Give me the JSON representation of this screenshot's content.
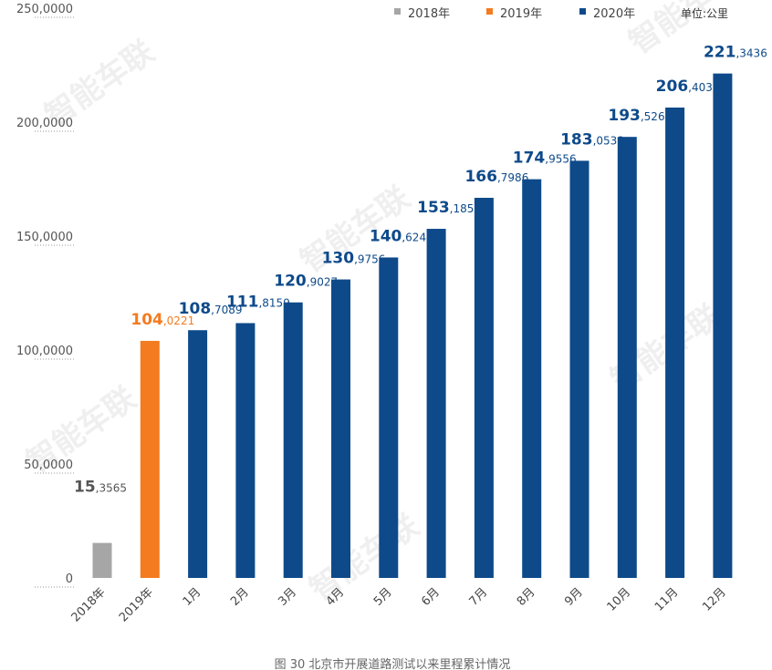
{
  "chart_data": {
    "type": "bar",
    "unit_label": "单位:公里",
    "legend": [
      {
        "label": "2018年",
        "color": "#a6a6a6"
      },
      {
        "label": "2019年",
        "color": "#f47b20"
      },
      {
        "label": "2020年",
        "color": "#0e4a8a"
      }
    ],
    "categories": [
      "2018年",
      "2019年",
      "1月",
      "2月",
      "3月",
      "4月",
      "5月",
      "6月",
      "7月",
      "8月",
      "9月",
      "10月",
      "11月",
      "12月"
    ],
    "values": [
      153565,
      1040221,
      1087089,
      1118159,
      1209027,
      1309756,
      1406242,
      1531855,
      1667986,
      1749556,
      1830538,
      1935263,
      2064035,
      2213436
    ],
    "value_labels": [
      {
        "main": "15",
        "rest": "3565"
      },
      {
        "main": "104",
        "rest": "0221"
      },
      {
        "main": "108",
        "rest": "7089"
      },
      {
        "main": "111",
        "rest": "8159"
      },
      {
        "main": "120",
        "rest": "9027"
      },
      {
        "main": "130",
        "rest": "9756"
      },
      {
        "main": "140",
        "rest": "6242"
      },
      {
        "main": "153",
        "rest": "1855"
      },
      {
        "main": "166",
        "rest": "7986"
      },
      {
        "main": "174",
        "rest": "9556"
      },
      {
        "main": "183",
        "rest": "0538"
      },
      {
        "main": "193",
        "rest": "5263"
      },
      {
        "main": "206",
        "rest": "4035"
      },
      {
        "main": "221",
        "rest": "3436"
      }
    ],
    "bar_group": [
      0,
      1,
      2,
      2,
      2,
      2,
      2,
      2,
      2,
      2,
      2,
      2,
      2,
      2
    ],
    "y_ticks": [
      0,
      500000,
      1000000,
      1500000,
      2000000,
      2500000
    ],
    "y_tick_labels": [
      "0",
      "50,0000",
      "100,0000",
      "150,0000",
      "200,0000",
      "250,0000"
    ],
    "ylim": [
      0,
      2500000
    ],
    "grid": true,
    "legend_position": "top-right"
  },
  "caption": "图 30 北京市开展道路测试以来里程累计情况",
  "watermark": "智能车联"
}
